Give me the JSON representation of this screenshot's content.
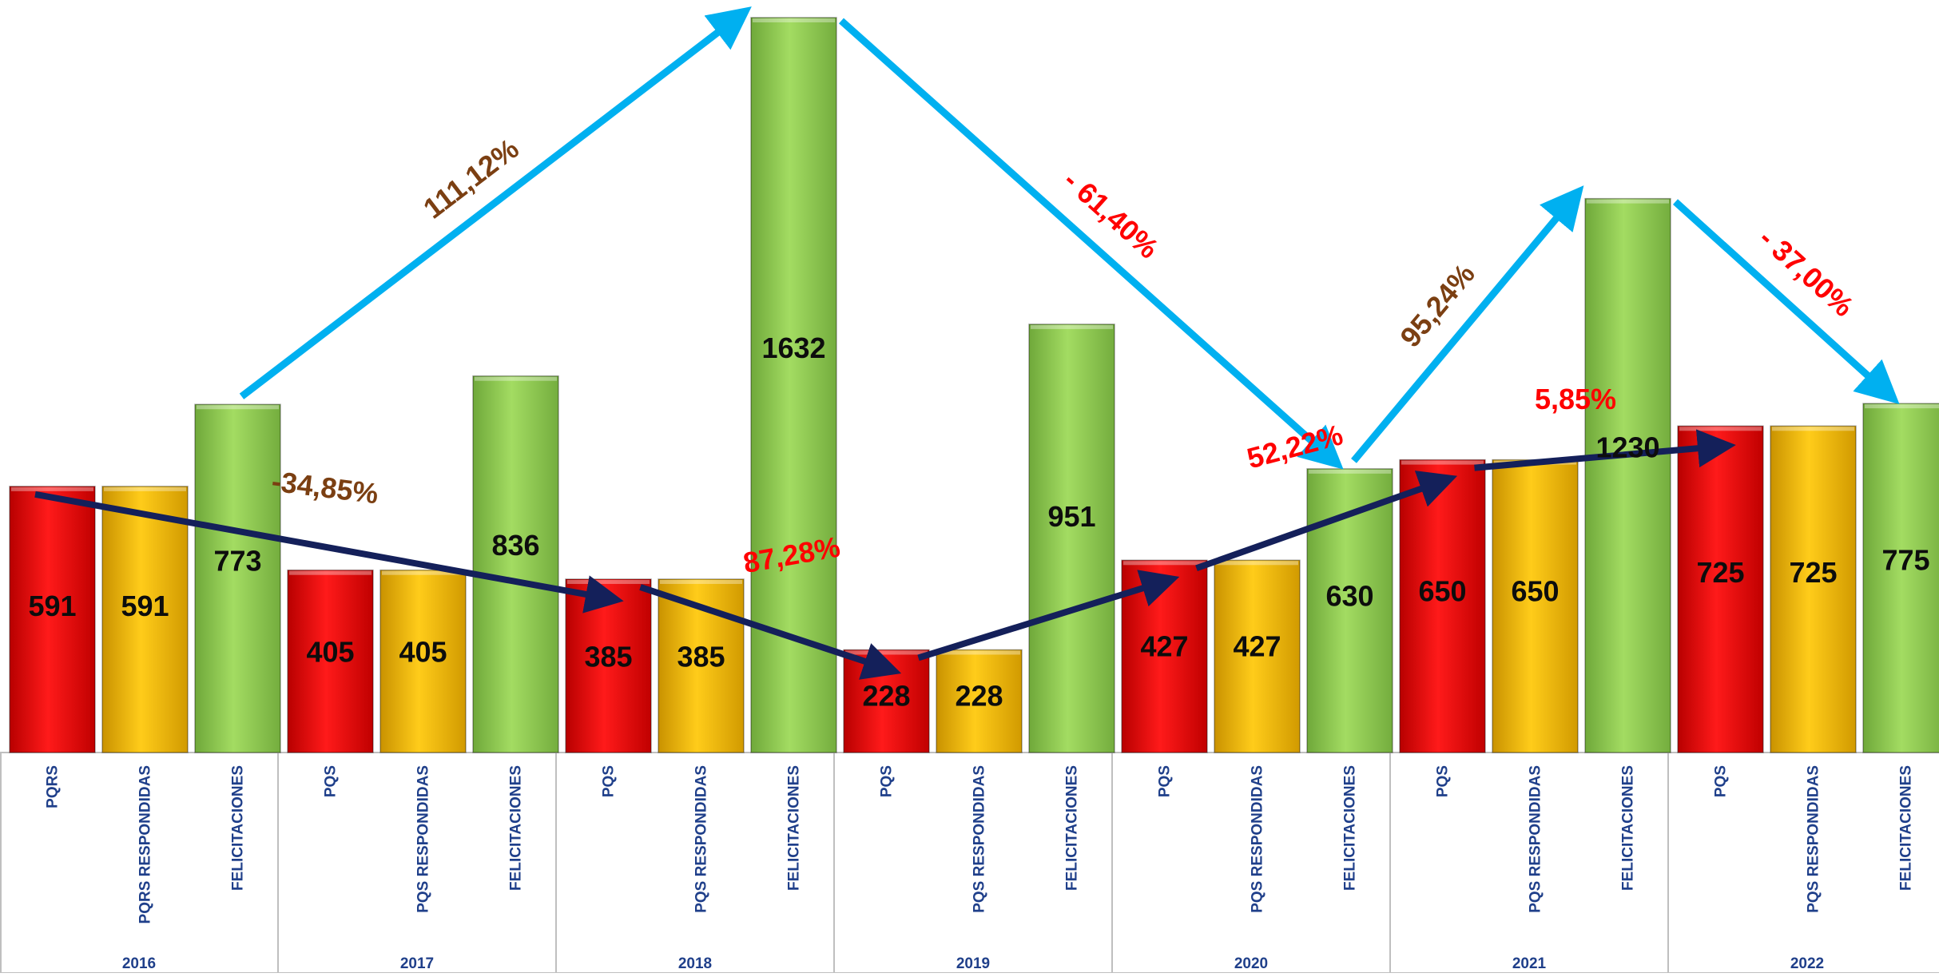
{
  "chart_data": {
    "type": "bar",
    "groups": [
      {
        "year": "2016",
        "bars": [
          {
            "label": "PQRS",
            "value": 591,
            "kind": "pqs"
          },
          {
            "label": "PQRS RESPONDIDAS",
            "value": 591,
            "kind": "resp"
          },
          {
            "label": "FELICITACIONES",
            "value": 773,
            "kind": "fel"
          }
        ]
      },
      {
        "year": "2017",
        "bars": [
          {
            "label": "PQS",
            "value": 405,
            "kind": "pqs"
          },
          {
            "label": "PQS RESPONDIDAS",
            "value": 405,
            "kind": "resp"
          },
          {
            "label": "FELICITACIONES",
            "value": 836,
            "kind": "fel"
          }
        ]
      },
      {
        "year": "2018",
        "bars": [
          {
            "label": "PQS",
            "value": 385,
            "kind": "pqs"
          },
          {
            "label": "PQS RESPONDIDAS",
            "value": 385,
            "kind": "resp"
          },
          {
            "label": "FELICITACIONES",
            "value": 1632,
            "kind": "fel"
          }
        ]
      },
      {
        "year": "2019",
        "bars": [
          {
            "label": "PQS",
            "value": 228,
            "kind": "pqs"
          },
          {
            "label": "PQS RESPONDIDAS",
            "value": 228,
            "kind": "resp"
          },
          {
            "label": "FELICITACIONES",
            "value": 951,
            "kind": "fel"
          }
        ]
      },
      {
        "year": "2020",
        "bars": [
          {
            "label": "PQS",
            "value": 427,
            "kind": "pqs"
          },
          {
            "label": "PQS RESPONDIDAS",
            "value": 427,
            "kind": "resp"
          },
          {
            "label": "FELICITACIONES",
            "value": 630,
            "kind": "fel"
          }
        ]
      },
      {
        "year": "2021",
        "bars": [
          {
            "label": "PQS",
            "value": 650,
            "kind": "pqs"
          },
          {
            "label": "PQS RESPONDIDAS",
            "value": 650,
            "kind": "resp"
          },
          {
            "label": "FELICITACIONES",
            "value": 1230,
            "kind": "fel"
          }
        ]
      },
      {
        "year": "2022",
        "bars": [
          {
            "label": "PQS",
            "value": 725,
            "kind": "pqs"
          },
          {
            "label": "PQS RESPONDIDAS",
            "value": 725,
            "kind": "resp"
          },
          {
            "label": "FELICITACIONES",
            "value": 775,
            "kind": "fel"
          }
        ]
      }
    ],
    "ylim": [
      0,
      1632
    ],
    "grid": false,
    "legend": "none",
    "annotations": [
      {
        "text": "111,12%",
        "color": "#7b3f12"
      },
      {
        "text": "- 61,40%",
        "color": "#ff0000"
      },
      {
        "text": "95,24%",
        "color": "#7b3f12"
      },
      {
        "text": "- 37,00%",
        "color": "#ff0000"
      },
      {
        "text": "-34,85%",
        "color": "#7b3f12"
      },
      {
        "text": "87,28%",
        "color": "#ff0000"
      },
      {
        "text": "52,22%",
        "color": "#ff0000"
      },
      {
        "text": "5,85%",
        "color": "#ff0000"
      }
    ]
  },
  "colors": {
    "pqs": "#ff0000",
    "resp": "#ffc000",
    "fel": "#92d050",
    "cyan_arrow": "#00b0f0",
    "navy_arrow": "#14205a",
    "axis_text": "#1f3f8a",
    "axis_line": "#bfbfbf"
  }
}
